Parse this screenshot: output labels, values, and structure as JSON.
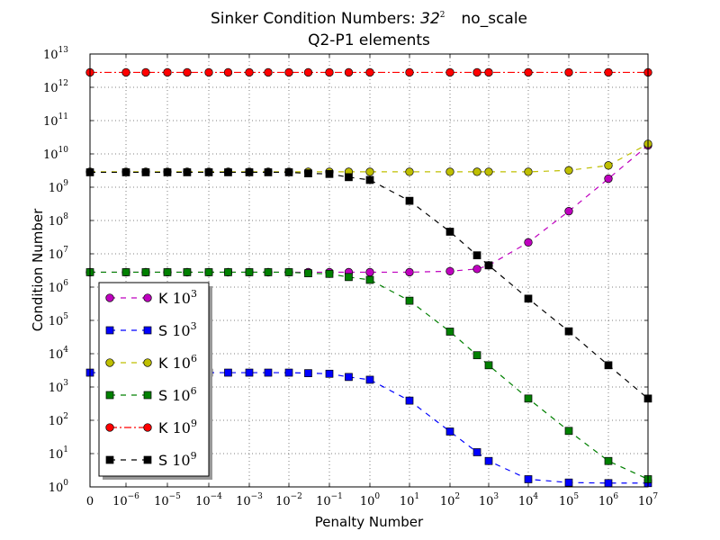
{
  "chart_data": {
    "type": "line",
    "title": "Sinker Condition Numbers: 32² no_scale",
    "title_line1_prefix": "Sinker Condition Numbers: ",
    "title_line1_base": "32",
    "title_line1_exp": "2",
    "title_line1_suffix": "no_scale",
    "subtitle": "Q2-P1 elements",
    "xlabel": "Penalty Number",
    "ylabel": "Condition Number",
    "x_scale": "symlog",
    "y_scale": "log",
    "xlim": [
      0,
      10000000
    ],
    "ylim": [
      1,
      10000000000000
    ],
    "grid": true,
    "legend_position": "lower-left",
    "x_ticks": [
      {
        "value": 0,
        "base": "0",
        "exp": ""
      },
      {
        "value": 1e-06,
        "base": "10",
        "exp": "−6"
      },
      {
        "value": 1e-05,
        "base": "10",
        "exp": "−5"
      },
      {
        "value": 0.0001,
        "base": "10",
        "exp": "−4"
      },
      {
        "value": 0.001,
        "base": "10",
        "exp": "−3"
      },
      {
        "value": 0.01,
        "base": "10",
        "exp": "−2"
      },
      {
        "value": 0.1,
        "base": "10",
        "exp": "−1"
      },
      {
        "value": 1,
        "base": "10",
        "exp": "0"
      },
      {
        "value": 10,
        "base": "10",
        "exp": "1"
      },
      {
        "value": 100,
        "base": "10",
        "exp": "2"
      },
      {
        "value": 1000,
        "base": "10",
        "exp": "3"
      },
      {
        "value": 10000,
        "base": "10",
        "exp": "4"
      },
      {
        "value": 100000,
        "base": "10",
        "exp": "5"
      },
      {
        "value": 1000000,
        "base": "10",
        "exp": "6"
      },
      {
        "value": 10000000,
        "base": "10",
        "exp": "7"
      }
    ],
    "y_ticks": [
      {
        "value": 1,
        "base": "10",
        "exp": "0"
      },
      {
        "value": 10,
        "base": "10",
        "exp": "1"
      },
      {
        "value": 100,
        "base": "10",
        "exp": "2"
      },
      {
        "value": 1000,
        "base": "10",
        "exp": "3"
      },
      {
        "value": 10000,
        "base": "10",
        "exp": "4"
      },
      {
        "value": 100000,
        "base": "10",
        "exp": "5"
      },
      {
        "value": 1000000,
        "base": "10",
        "exp": "6"
      },
      {
        "value": 10000000,
        "base": "10",
        "exp": "7"
      },
      {
        "value": 100000000,
        "base": "10",
        "exp": "8"
      },
      {
        "value": 1000000000,
        "base": "10",
        "exp": "9"
      },
      {
        "value": 10000000000,
        "base": "10",
        "exp": "10"
      },
      {
        "value": 100000000000,
        "base": "10",
        "exp": "11"
      },
      {
        "value": 1000000000000,
        "base": "10",
        "exp": "12"
      },
      {
        "value": 10000000000000,
        "base": "10",
        "exp": "13"
      }
    ],
    "x": [
      0,
      1e-06,
      3e-06,
      1e-05,
      3e-05,
      0.0001,
      0.0003,
      0.001,
      0.003,
      0.01,
      0.03,
      0.1,
      0.3,
      1,
      10,
      100,
      500,
      1000,
      10000,
      100000,
      1000000,
      10000000
    ],
    "series": [
      {
        "name": "K 10³",
        "name_prefix": "K ",
        "name_base": "10",
        "name_exp": "3",
        "color": "#bf00bf",
        "marker": "circle",
        "dash": "dashed",
        "values": [
          2800000.0,
          2800000.0,
          2800000.0,
          2800000.0,
          2800000.0,
          2800000.0,
          2800000.0,
          2800000.0,
          2800000.0,
          2800000.0,
          2800000.0,
          2800000.0,
          2800000.0,
          2800000.0,
          2800000.0,
          3000000.0,
          3500000.0,
          4500000.0,
          22000000.0,
          190000000.0,
          1800000000.0,
          18000000000.0
        ]
      },
      {
        "name": "S 10³",
        "name_prefix": "S ",
        "name_base": "10",
        "name_exp": "3",
        "color": "#0000ff",
        "marker": "square",
        "dash": "dashed",
        "values": [
          2700.0,
          2700.0,
          2700.0,
          2700.0,
          2700.0,
          2700.0,
          2700.0,
          2700.0,
          2700.0,
          2700.0,
          2600.0,
          2500.0,
          2000.0,
          1650.0,
          390,
          46,
          11,
          6,
          1.7,
          1.35,
          1.3,
          1.3
        ]
      },
      {
        "name": "K 10⁶",
        "name_prefix": "K ",
        "name_base": "10",
        "name_exp": "6",
        "color": "#bfbf00",
        "marker": "circle",
        "dash": "dashed",
        "values": [
          2900000000.0,
          2900000000.0,
          2900000000.0,
          2900000000.0,
          2900000000.0,
          2900000000.0,
          2900000000.0,
          2900000000.0,
          2900000000.0,
          2900000000.0,
          2900000000.0,
          2900000000.0,
          2900000000.0,
          2900000000.0,
          2900000000.0,
          2900000000.0,
          2900000000.0,
          2900000000.0,
          2900000000.0,
          3200000000.0,
          4500000000.0,
          20000000000.0
        ]
      },
      {
        "name": "S 10⁶",
        "name_prefix": "S ",
        "name_base": "10",
        "name_exp": "6",
        "color": "#008000",
        "marker": "square",
        "dash": "dashed",
        "values": [
          2800000.0,
          2800000.0,
          2800000.0,
          2800000.0,
          2800000.0,
          2800000.0,
          2800000.0,
          2800000.0,
          2800000.0,
          2800000.0,
          2600000.0,
          2500000.0,
          2000000.0,
          1650000.0,
          390000.0,
          46000.0,
          9000.0,
          4500.0,
          450,
          48,
          6,
          1.7
        ]
      },
      {
        "name": "K 10⁹",
        "name_prefix": "K ",
        "name_base": "10",
        "name_exp": "9",
        "color": "#ff0000",
        "marker": "circle",
        "dash": "dashdot",
        "values": [
          2800000000000.0,
          2800000000000.0,
          2800000000000.0,
          2800000000000.0,
          2800000000000.0,
          2800000000000.0,
          2800000000000.0,
          2800000000000.0,
          2800000000000.0,
          2800000000000.0,
          2800000000000.0,
          2800000000000.0,
          2800000000000.0,
          2800000000000.0,
          2800000000000.0,
          2800000000000.0,
          2800000000000.0,
          2800000000000.0,
          2800000000000.0,
          2800000000000.0,
          2800000000000.0,
          2800000000000.0
        ]
      },
      {
        "name": "S 10⁹",
        "name_prefix": "S ",
        "name_base": "10",
        "name_exp": "9",
        "color": "#000000",
        "marker": "square",
        "dash": "dashed",
        "values": [
          2800000000.0,
          2800000000.0,
          2800000000.0,
          2800000000.0,
          2800000000.0,
          2800000000.0,
          2800000000.0,
          2800000000.0,
          2800000000.0,
          2800000000.0,
          2600000000.0,
          2500000000.0,
          2000000000.0,
          1650000000.0,
          390000000.0,
          46000000.0,
          9000000.0,
          4500000.0,
          450000.0,
          47000.0,
          4500.0,
          450
        ]
      }
    ]
  }
}
